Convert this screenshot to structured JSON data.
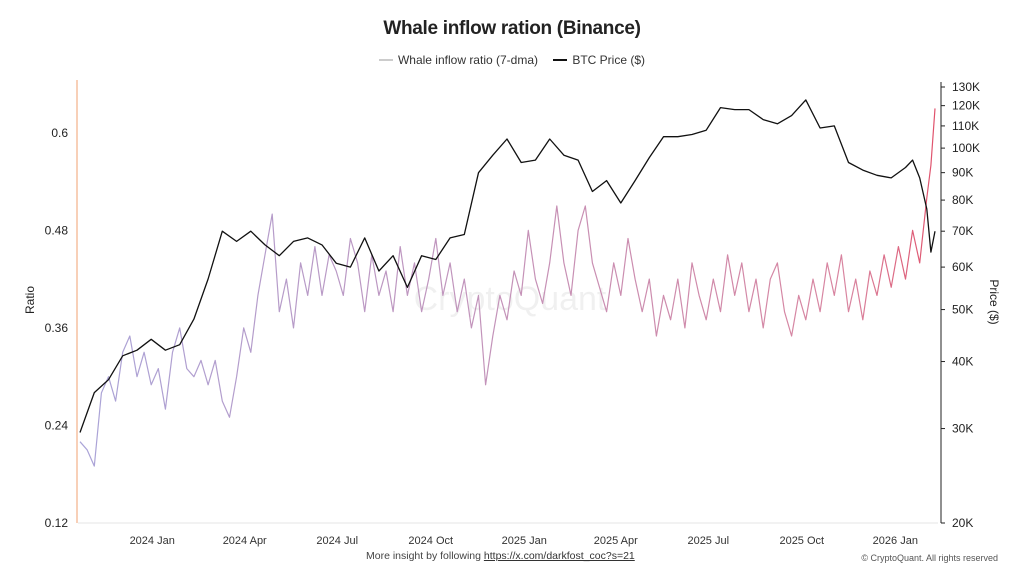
{
  "chart_data": {
    "type": "line",
    "title": "Whale inflow ration (Binance)",
    "legend_position": "top",
    "watermark": "CryptoQuant",
    "footer": {
      "text": "More insight by following ",
      "link": "https://x.com/darkfost_coc?s=21",
      "copyright": "© CryptoQuant. All rights reserved"
    },
    "x_ticks": [
      "2024 Jan",
      "2024 Apr",
      "2024 Jul",
      "2024 Oct",
      "2025 Jan",
      "2025 Apr",
      "2025 Jul",
      "2025 Oct",
      "2026 Jan"
    ],
    "x_tick_dates": [
      "2024-01-01",
      "2024-04-01",
      "2024-07-01",
      "2024-10-01",
      "2025-01-01",
      "2025-04-01",
      "2025-07-01",
      "2025-10-01",
      "2026-01-01"
    ],
    "x_range": [
      "2023-10-20",
      "2026-02-12"
    ],
    "y_left": {
      "label": "Ratio",
      "range": [
        0.12,
        0.665
      ],
      "ticks": [
        "0.12",
        "0.24",
        "0.36",
        "0.48",
        "0.6"
      ]
    },
    "y_right": {
      "label": "Price ($)",
      "scale": "log",
      "range": [
        20000,
        130000
      ],
      "ticks": [
        "20K",
        "30K",
        "40K",
        "50K",
        "60K",
        "70K",
        "80K",
        "90K",
        "100K",
        "110K",
        "120K",
        "130K"
      ]
    },
    "grid": false,
    "colors": {
      "ratio_start": "#aaa4d8",
      "ratio_end": "#d9849f",
      "ratio_peak": "#e0506a",
      "price": "#111111",
      "left_axis": "#f0a070"
    },
    "series": [
      {
        "name": "Whale inflow ratio (7-dma)",
        "axis": "left",
        "points": [
          [
            "2023-10-22",
            0.22
          ],
          [
            "2023-10-29",
            0.21
          ],
          [
            "2023-11-05",
            0.19
          ],
          [
            "2023-11-12",
            0.28
          ],
          [
            "2023-11-19",
            0.3
          ],
          [
            "2023-11-26",
            0.27
          ],
          [
            "2023-12-03",
            0.33
          ],
          [
            "2023-12-10",
            0.35
          ],
          [
            "2023-12-17",
            0.3
          ],
          [
            "2023-12-24",
            0.33
          ],
          [
            "2023-12-31",
            0.29
          ],
          [
            "2024-01-07",
            0.31
          ],
          [
            "2024-01-14",
            0.26
          ],
          [
            "2024-01-21",
            0.33
          ],
          [
            "2024-01-28",
            0.36
          ],
          [
            "2024-02-04",
            0.31
          ],
          [
            "2024-02-11",
            0.3
          ],
          [
            "2024-02-18",
            0.32
          ],
          [
            "2024-02-25",
            0.29
          ],
          [
            "2024-03-03",
            0.32
          ],
          [
            "2024-03-10",
            0.27
          ],
          [
            "2024-03-17",
            0.25
          ],
          [
            "2024-03-24",
            0.3
          ],
          [
            "2024-03-31",
            0.36
          ],
          [
            "2024-04-07",
            0.33
          ],
          [
            "2024-04-14",
            0.4
          ],
          [
            "2024-04-21",
            0.45
          ],
          [
            "2024-04-28",
            0.5
          ],
          [
            "2024-05-05",
            0.38
          ],
          [
            "2024-05-12",
            0.42
          ],
          [
            "2024-05-19",
            0.36
          ],
          [
            "2024-05-26",
            0.44
          ],
          [
            "2024-06-02",
            0.4
          ],
          [
            "2024-06-09",
            0.46
          ],
          [
            "2024-06-16",
            0.4
          ],
          [
            "2024-06-23",
            0.45
          ],
          [
            "2024-06-30",
            0.43
          ],
          [
            "2024-07-07",
            0.4
          ],
          [
            "2024-07-14",
            0.47
          ],
          [
            "2024-07-21",
            0.44
          ],
          [
            "2024-07-28",
            0.38
          ],
          [
            "2024-08-04",
            0.45
          ],
          [
            "2024-08-11",
            0.4
          ],
          [
            "2024-08-18",
            0.43
          ],
          [
            "2024-08-25",
            0.38
          ],
          [
            "2024-09-01",
            0.46
          ],
          [
            "2024-09-08",
            0.4
          ],
          [
            "2024-09-15",
            0.44
          ],
          [
            "2024-09-22",
            0.38
          ],
          [
            "2024-09-29",
            0.42
          ],
          [
            "2024-10-06",
            0.47
          ],
          [
            "2024-10-13",
            0.4
          ],
          [
            "2024-10-20",
            0.44
          ],
          [
            "2024-10-27",
            0.38
          ],
          [
            "2024-11-03",
            0.42
          ],
          [
            "2024-11-10",
            0.36
          ],
          [
            "2024-11-17",
            0.4
          ],
          [
            "2024-11-24",
            0.29
          ],
          [
            "2024-12-01",
            0.35
          ],
          [
            "2024-12-08",
            0.4
          ],
          [
            "2024-12-15",
            0.37
          ],
          [
            "2024-12-22",
            0.43
          ],
          [
            "2024-12-29",
            0.4
          ],
          [
            "2025-01-05",
            0.48
          ],
          [
            "2025-01-12",
            0.42
          ],
          [
            "2025-01-19",
            0.39
          ],
          [
            "2025-01-26",
            0.44
          ],
          [
            "2025-02-02",
            0.51
          ],
          [
            "2025-02-09",
            0.44
          ],
          [
            "2025-02-16",
            0.4
          ],
          [
            "2025-02-23",
            0.48
          ],
          [
            "2025-03-02",
            0.51
          ],
          [
            "2025-03-09",
            0.44
          ],
          [
            "2025-03-16",
            0.41
          ],
          [
            "2025-03-23",
            0.38
          ],
          [
            "2025-03-30",
            0.44
          ],
          [
            "2025-04-06",
            0.4
          ],
          [
            "2025-04-13",
            0.47
          ],
          [
            "2025-04-20",
            0.42
          ],
          [
            "2025-04-27",
            0.38
          ],
          [
            "2025-05-04",
            0.42
          ],
          [
            "2025-05-11",
            0.35
          ],
          [
            "2025-05-18",
            0.4
          ],
          [
            "2025-05-25",
            0.37
          ],
          [
            "2025-06-01",
            0.42
          ],
          [
            "2025-06-08",
            0.36
          ],
          [
            "2025-06-15",
            0.44
          ],
          [
            "2025-06-22",
            0.4
          ],
          [
            "2025-06-29",
            0.37
          ],
          [
            "2025-07-06",
            0.42
          ],
          [
            "2025-07-13",
            0.38
          ],
          [
            "2025-07-20",
            0.45
          ],
          [
            "2025-07-27",
            0.4
          ],
          [
            "2025-08-03",
            0.44
          ],
          [
            "2025-08-10",
            0.38
          ],
          [
            "2025-08-17",
            0.42
          ],
          [
            "2025-08-24",
            0.36
          ],
          [
            "2025-08-31",
            0.42
          ],
          [
            "2025-09-07",
            0.44
          ],
          [
            "2025-09-14",
            0.38
          ],
          [
            "2025-09-21",
            0.35
          ],
          [
            "2025-09-28",
            0.4
          ],
          [
            "2025-10-05",
            0.37
          ],
          [
            "2025-10-12",
            0.42
          ],
          [
            "2025-10-19",
            0.38
          ],
          [
            "2025-10-26",
            0.44
          ],
          [
            "2025-11-02",
            0.4
          ],
          [
            "2025-11-09",
            0.45
          ],
          [
            "2025-11-16",
            0.38
          ],
          [
            "2025-11-23",
            0.42
          ],
          [
            "2025-11-30",
            0.37
          ],
          [
            "2025-12-07",
            0.43
          ],
          [
            "2025-12-14",
            0.4
          ],
          [
            "2025-12-21",
            0.45
          ],
          [
            "2025-12-28",
            0.41
          ],
          [
            "2026-01-04",
            0.46
          ],
          [
            "2026-01-11",
            0.42
          ],
          [
            "2026-01-18",
            0.48
          ],
          [
            "2026-01-25",
            0.44
          ],
          [
            "2026-02-01",
            0.52
          ],
          [
            "2026-02-05",
            0.56
          ],
          [
            "2026-02-09",
            0.63
          ]
        ]
      },
      {
        "name": "BTC Price ($)",
        "axis": "right",
        "points": [
          [
            "2023-10-22",
            29500
          ],
          [
            "2023-11-05",
            35000
          ],
          [
            "2023-11-19",
            37000
          ],
          [
            "2023-12-03",
            41000
          ],
          [
            "2023-12-17",
            42000
          ],
          [
            "2023-12-31",
            44000
          ],
          [
            "2024-01-14",
            42000
          ],
          [
            "2024-01-28",
            43000
          ],
          [
            "2024-02-11",
            48000
          ],
          [
            "2024-02-25",
            57000
          ],
          [
            "2024-03-10",
            70000
          ],
          [
            "2024-03-24",
            67000
          ],
          [
            "2024-04-07",
            70000
          ],
          [
            "2024-04-21",
            66000
          ],
          [
            "2024-05-05",
            63000
          ],
          [
            "2024-05-19",
            67000
          ],
          [
            "2024-06-02",
            68000
          ],
          [
            "2024-06-16",
            66000
          ],
          [
            "2024-06-30",
            61000
          ],
          [
            "2024-07-14",
            60000
          ],
          [
            "2024-07-28",
            68000
          ],
          [
            "2024-08-11",
            59000
          ],
          [
            "2024-08-25",
            63000
          ],
          [
            "2024-09-08",
            55000
          ],
          [
            "2024-09-22",
            63000
          ],
          [
            "2024-10-06",
            62000
          ],
          [
            "2024-10-20",
            68000
          ],
          [
            "2024-11-03",
            69000
          ],
          [
            "2024-11-17",
            90000
          ],
          [
            "2024-12-01",
            97000
          ],
          [
            "2024-12-15",
            104000
          ],
          [
            "2024-12-29",
            94000
          ],
          [
            "2025-01-12",
            95000
          ],
          [
            "2025-01-26",
            104000
          ],
          [
            "2025-02-09",
            97000
          ],
          [
            "2025-02-23",
            95000
          ],
          [
            "2025-03-09",
            83000
          ],
          [
            "2025-03-23",
            87000
          ],
          [
            "2025-04-06",
            79000
          ],
          [
            "2025-04-20",
            87000
          ],
          [
            "2025-05-04",
            96000
          ],
          [
            "2025-05-18",
            105000
          ],
          [
            "2025-06-01",
            105000
          ],
          [
            "2025-06-15",
            106000
          ],
          [
            "2025-06-29",
            108000
          ],
          [
            "2025-07-13",
            119000
          ],
          [
            "2025-07-27",
            118000
          ],
          [
            "2025-08-10",
            118000
          ],
          [
            "2025-08-24",
            113000
          ],
          [
            "2025-09-07",
            111000
          ],
          [
            "2025-09-21",
            115000
          ],
          [
            "2025-10-05",
            123000
          ],
          [
            "2025-10-19",
            109000
          ],
          [
            "2025-11-02",
            110000
          ],
          [
            "2025-11-16",
            94000
          ],
          [
            "2025-11-30",
            91000
          ],
          [
            "2025-12-14",
            89000
          ],
          [
            "2025-12-28",
            88000
          ],
          [
            "2026-01-11",
            92000
          ],
          [
            "2026-01-18",
            95000
          ],
          [
            "2026-01-25",
            88000
          ],
          [
            "2026-02-01",
            77000
          ],
          [
            "2026-02-05",
            64000
          ],
          [
            "2026-02-09",
            70000
          ]
        ]
      }
    ]
  }
}
